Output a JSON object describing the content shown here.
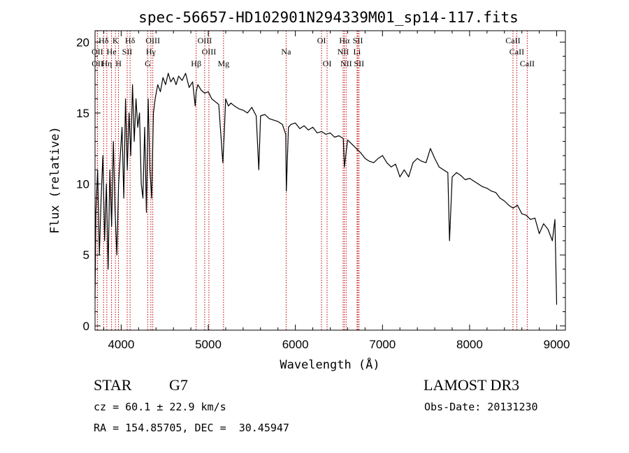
{
  "chart_data": {
    "type": "line",
    "title": "spec-56657-HD102901N294339M01_sp14-117.fits",
    "xlabel": "Wavelength (Å)",
    "ylabel": "Flux (relative)",
    "xlim": [
      3700,
      9100
    ],
    "ylim": [
      -0.3,
      20.8
    ],
    "xticks": [
      4000,
      5000,
      6000,
      7000,
      8000,
      9000
    ],
    "yticks": [
      0,
      5,
      10,
      15,
      20
    ],
    "series": [
      {
        "name": "flux",
        "x": [
          3700,
          3710,
          3730,
          3750,
          3770,
          3790,
          3810,
          3830,
          3850,
          3870,
          3890,
          3910,
          3930,
          3950,
          3970,
          3990,
          4010,
          4030,
          4050,
          4070,
          4090,
          4110,
          4130,
          4150,
          4170,
          4190,
          4210,
          4230,
          4250,
          4270,
          4290,
          4310,
          4330,
          4350,
          4370,
          4390,
          4420,
          4450,
          4480,
          4510,
          4540,
          4570,
          4600,
          4630,
          4660,
          4700,
          4740,
          4780,
          4820,
          4850,
          4861,
          4880,
          4920,
          4960,
          5000,
          5040,
          5080,
          5120,
          5150,
          5167,
          5183,
          5200,
          5230,
          5260,
          5300,
          5350,
          5400,
          5450,
          5500,
          5550,
          5580,
          5600,
          5650,
          5700,
          5750,
          5800,
          5850,
          5890,
          5896,
          5920,
          5950,
          6000,
          6050,
          6100,
          6150,
          6200,
          6250,
          6300,
          6350,
          6400,
          6450,
          6500,
          6550,
          6563,
          6600,
          6650,
          6700,
          6750,
          6800,
          6850,
          6900,
          6950,
          7000,
          7050,
          7100,
          7150,
          7200,
          7250,
          7300,
          7350,
          7400,
          7450,
          7500,
          7550,
          7600,
          7650,
          7700,
          7750,
          7770,
          7800,
          7850,
          7900,
          7950,
          8000,
          8050,
          8100,
          8150,
          8200,
          8250,
          8300,
          8350,
          8400,
          8450,
          8500,
          8550,
          8600,
          8650,
          8700,
          8750,
          8800,
          8850,
          8900,
          8950,
          8980,
          9000
        ],
        "values": [
          2,
          8,
          11,
          5,
          9,
          12,
          6,
          10,
          4,
          11,
          7,
          13,
          8,
          5,
          10,
          12,
          14,
          9,
          16,
          11,
          15,
          12,
          17,
          13,
          16,
          14,
          15,
          10,
          9,
          14,
          8,
          16,
          11,
          9,
          15,
          16,
          17,
          16.5,
          17.5,
          17,
          17.8,
          17.2,
          17.5,
          17,
          17.6,
          17.3,
          17.8,
          16.8,
          17.2,
          15.5,
          16.5,
          17,
          16.6,
          16.4,
          16.5,
          16,
          15.8,
          15.6,
          13,
          11.5,
          13.5,
          16,
          15.5,
          15.7,
          15.5,
          15.3,
          15.2,
          15,
          15.4,
          14.8,
          11,
          14.8,
          14.9,
          14.6,
          14.5,
          14.4,
          14.2,
          13.5,
          9.5,
          14,
          14.2,
          14.3,
          13.9,
          14.1,
          13.8,
          14,
          13.6,
          13.7,
          13.5,
          13.6,
          13.3,
          13.4,
          13.2,
          11.2,
          13.1,
          12.8,
          12.5,
          12.2,
          11.8,
          11.6,
          11.5,
          11.8,
          12,
          11.5,
          11.2,
          11.4,
          10.5,
          11,
          10.5,
          11.5,
          11.8,
          11.6,
          11.5,
          12.5,
          11.8,
          11.2,
          11,
          10.8,
          6,
          10.5,
          10.8,
          10.6,
          10.3,
          10.4,
          10.2,
          10,
          9.8,
          9.7,
          9.5,
          9.4,
          9,
          8.8,
          8.5,
          8.3,
          8.5,
          7.9,
          7.8,
          7.5,
          7.6,
          6.5,
          7.2,
          6.8,
          6,
          7.5,
          1.5
        ]
      }
    ],
    "lines": [
      {
        "label": "Hδ",
        "wl": 3798,
        "row": 0
      },
      {
        "label": "OII",
        "wl": 3727,
        "row": 1
      },
      {
        "label": "OII",
        "wl": 3729,
        "row": 2
      },
      {
        "label": "He",
        "wl": 3889,
        "row": 1
      },
      {
        "label": "Hη",
        "wl": 3835,
        "row": 2
      },
      {
        "label": "K",
        "wl": 3934,
        "row": 0
      },
      {
        "label": "SII",
        "wl": 4069,
        "row": 1
      },
      {
        "label": "H",
        "wl": 3969,
        "row": 2
      },
      {
        "label": "Hδ",
        "wl": 4102,
        "row": 0
      },
      {
        "label": "OIII",
        "wl": 4363,
        "row": 0
      },
      {
        "label": "Hγ",
        "wl": 4341,
        "row": 1
      },
      {
        "label": "G",
        "wl": 4305,
        "row": 2
      },
      {
        "label": "Hβ",
        "wl": 4861,
        "row": 2
      },
      {
        "label": "OIII",
        "wl": 4959,
        "row": 0
      },
      {
        "label": "OIII",
        "wl": 5007,
        "row": 1
      },
      {
        "label": "Mg",
        "wl": 5175,
        "row": 2
      },
      {
        "label": "Na",
        "wl": 5894,
        "row": 1
      },
      {
        "label": "OI",
        "wl": 6300,
        "row": 0
      },
      {
        "label": "OI",
        "wl": 6364,
        "row": 2
      },
      {
        "label": "Hα",
        "wl": 6563,
        "row": 0
      },
      {
        "label": "NII",
        "wl": 6548,
        "row": 1
      },
      {
        "label": "NII",
        "wl": 6583,
        "row": 2
      },
      {
        "label": "SII",
        "wl": 6717,
        "row": 0
      },
      {
        "label": "Li",
        "wl": 6708,
        "row": 1
      },
      {
        "label": "SII",
        "wl": 6731,
        "row": 2
      },
      {
        "label": "CaII",
        "wl": 8498,
        "row": 0
      },
      {
        "label": "CaII",
        "wl": 8542,
        "row": 1
      },
      {
        "label": "CaII",
        "wl": 8662,
        "row": 2
      }
    ]
  },
  "info": {
    "class": "STAR",
    "subclass": "G7",
    "survey": "LAMOST DR3",
    "cz": "cz = 60.1 ± 22.9 km/s",
    "obs_date": "Obs-Date: 20131230",
    "radec": "RA = 154.85705, DEC =  30.45947"
  },
  "colors": {
    "axis": "#000000",
    "trace": "#000000",
    "line_marker": "#c00000"
  }
}
